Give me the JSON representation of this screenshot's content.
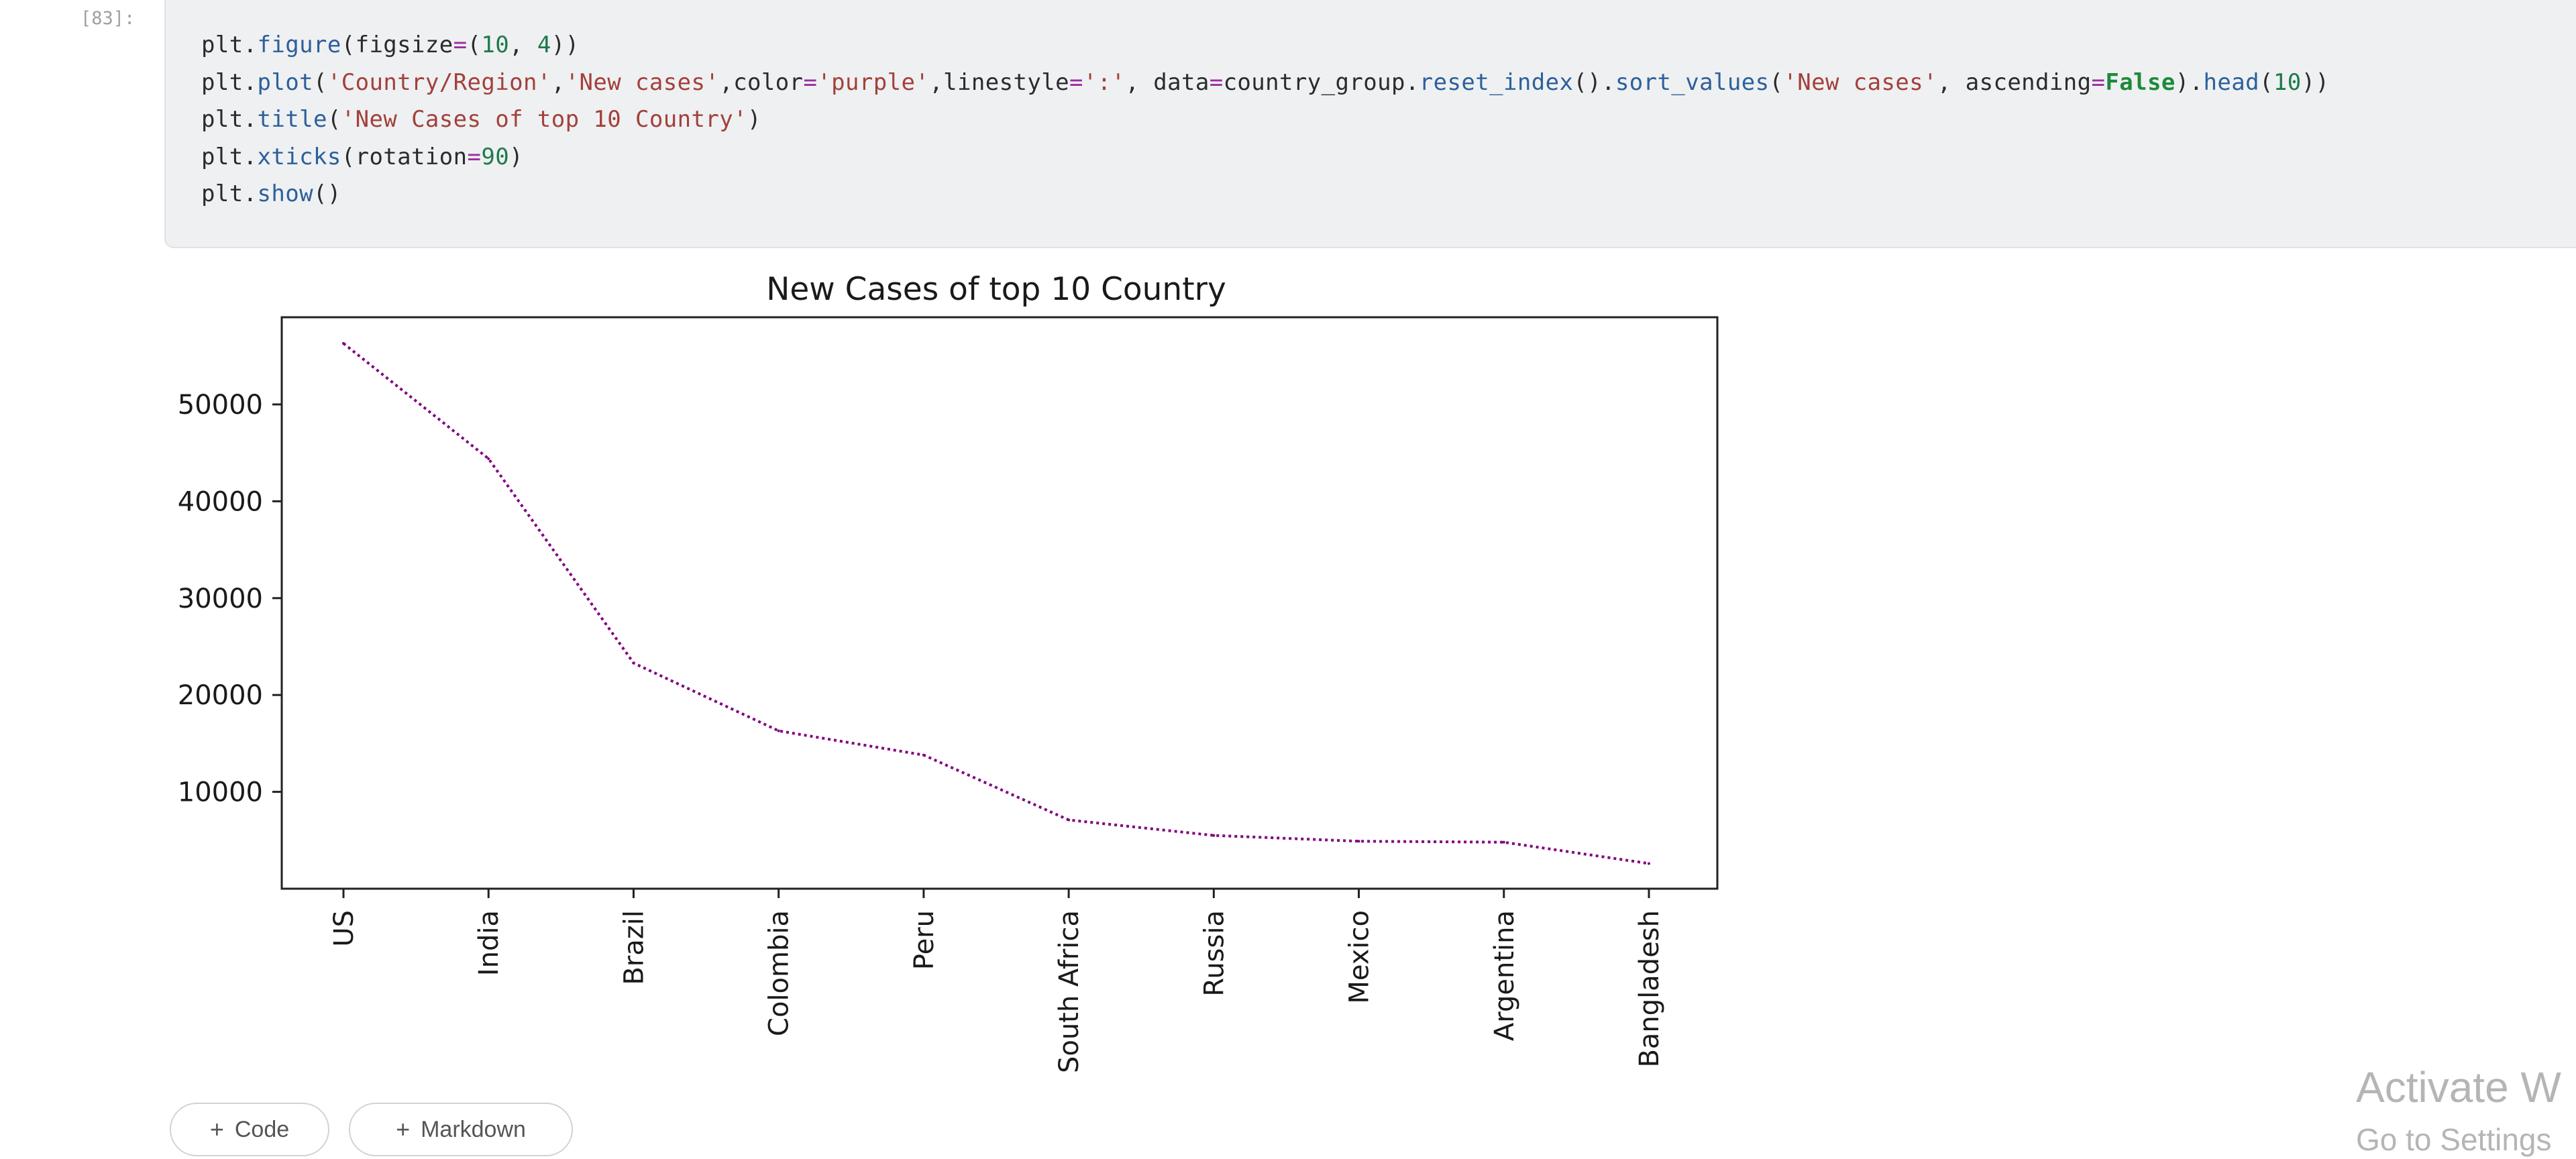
{
  "cell": {
    "execution_count": "[83]:"
  },
  "code": {
    "lines": [
      [
        {
          "t": "plt.",
          "c": "tok-plain"
        },
        {
          "t": "figure",
          "c": "tok-fn"
        },
        {
          "t": "(figsize",
          "c": "tok-plain"
        },
        {
          "t": "=",
          "c": "tok-eq"
        },
        {
          "t": "(",
          "c": "tok-plain"
        },
        {
          "t": "10",
          "c": "tok-num"
        },
        {
          "t": ", ",
          "c": "tok-plain"
        },
        {
          "t": "4",
          "c": "tok-num"
        },
        {
          "t": "))",
          "c": "tok-plain"
        }
      ],
      [
        {
          "t": "plt.",
          "c": "tok-plain"
        },
        {
          "t": "plot",
          "c": "tok-fn"
        },
        {
          "t": "(",
          "c": "tok-plain"
        },
        {
          "t": "'Country/Region'",
          "c": "tok-str"
        },
        {
          "t": ",",
          "c": "tok-plain"
        },
        {
          "t": "'New cases'",
          "c": "tok-str"
        },
        {
          "t": ",color",
          "c": "tok-plain"
        },
        {
          "t": "=",
          "c": "tok-eq"
        },
        {
          "t": "'purple'",
          "c": "tok-str"
        },
        {
          "t": ",linestyle",
          "c": "tok-plain"
        },
        {
          "t": "=",
          "c": "tok-eq"
        },
        {
          "t": "':'",
          "c": "tok-str"
        },
        {
          "t": ", data",
          "c": "tok-plain"
        },
        {
          "t": "=",
          "c": "tok-eq"
        },
        {
          "t": "country_group.",
          "c": "tok-plain"
        },
        {
          "t": "reset_index",
          "c": "tok-fn"
        },
        {
          "t": "().",
          "c": "tok-plain"
        },
        {
          "t": "sort_values",
          "c": "tok-fn"
        },
        {
          "t": "(",
          "c": "tok-plain"
        },
        {
          "t": "'New cases'",
          "c": "tok-str"
        },
        {
          "t": ", ascending",
          "c": "tok-plain"
        },
        {
          "t": "=",
          "c": "tok-eq"
        },
        {
          "t": "False",
          "c": "tok-kw"
        },
        {
          "t": ").",
          "c": "tok-plain"
        },
        {
          "t": "head",
          "c": "tok-fn"
        },
        {
          "t": "(",
          "c": "tok-plain"
        },
        {
          "t": "10",
          "c": "tok-num"
        },
        {
          "t": "))",
          "c": "tok-plain"
        }
      ],
      [
        {
          "t": "plt.",
          "c": "tok-plain"
        },
        {
          "t": "title",
          "c": "tok-fn"
        },
        {
          "t": "(",
          "c": "tok-plain"
        },
        {
          "t": "'New Cases of top 10 Country'",
          "c": "tok-str"
        },
        {
          "t": ")",
          "c": "tok-plain"
        }
      ],
      [
        {
          "t": "plt.",
          "c": "tok-plain"
        },
        {
          "t": "xticks",
          "c": "tok-fn"
        },
        {
          "t": "(rotation",
          "c": "tok-plain"
        },
        {
          "t": "=",
          "c": "tok-eq"
        },
        {
          "t": "90",
          "c": "tok-num"
        },
        {
          "t": ")",
          "c": "tok-plain"
        }
      ],
      [
        {
          "t": "plt.",
          "c": "tok-plain"
        },
        {
          "t": "show",
          "c": "tok-fn"
        },
        {
          "t": "()",
          "c": "tok-plain"
        }
      ]
    ]
  },
  "chart_data": {
    "type": "line",
    "title": "New Cases of top 10 Country",
    "xlabel": "",
    "ylabel": "",
    "categories": [
      "US",
      "India",
      "Brazil",
      "Colombia",
      "Peru",
      "South Africa",
      "Russia",
      "Mexico",
      "Argentina",
      "Bangladesh"
    ],
    "values": [
      56300,
      44400,
      23300,
      16300,
      13800,
      7100,
      5500,
      4900,
      4800,
      2600
    ],
    "yticks": [
      10000,
      20000,
      30000,
      40000,
      50000
    ],
    "ylim": [
      0,
      59000
    ],
    "line_color": "#800080",
    "linestyle": "dotted",
    "grid": false,
    "legend": "none"
  },
  "toolbar": {
    "code_label": "Code",
    "markdown_label": "Markdown"
  },
  "watermark": {
    "line1": "Activate W",
    "line2": "Go to Settings"
  }
}
